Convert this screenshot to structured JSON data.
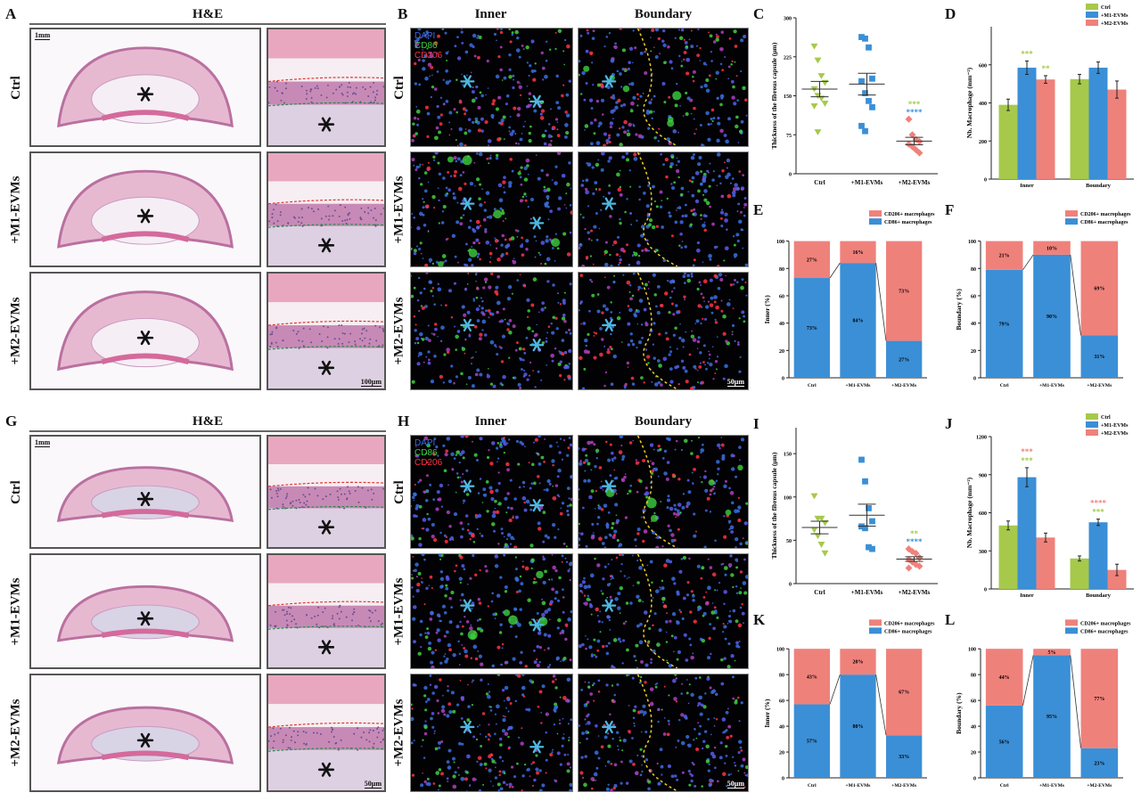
{
  "panels": {
    "A": {
      "letter": "A",
      "title": "H&E",
      "scale_low": "1mm",
      "scale_high": "100μm"
    },
    "B": {
      "letter": "B",
      "columns": [
        "Inner",
        "Boundary"
      ],
      "channels": [
        "DAPI",
        "CD86",
        "CD206"
      ],
      "scale": "50μm"
    },
    "G": {
      "letter": "G",
      "title": "H&E",
      "scale_low": "1mm",
      "scale_high": "50μm"
    },
    "H": {
      "letter": "H",
      "columns": [
        "Inner",
        "Boundary"
      ],
      "channels": [
        "DAPI",
        "CD86",
        "CD206"
      ],
      "scale": "50μm"
    }
  },
  "groups": [
    "Ctrl",
    "+M1-EVMs",
    "+M2-EVMs"
  ],
  "colors": {
    "ctrl": "#a6c94b",
    "m1": "#3b8fd6",
    "m2": "#ef817b",
    "dapi": "#3a6fe0",
    "cd86": "#3fcf3f",
    "cd206": "#ff3344",
    "boundary_line": "#f0d020"
  },
  "chart_data": [
    {
      "panel": "C",
      "type": "scatter",
      "ylabel": "Thickness of the fibrous capsule (μm)",
      "ylim": [
        0,
        300
      ],
      "yticks": [
        "0",
        "75",
        "150",
        "225",
        "300"
      ],
      "ytick_values": [
        0,
        75,
        150,
        225,
        300
      ],
      "categories": [
        "Ctrl",
        "+M1-EVMs",
        "+M2-EVMs"
      ],
      "series": [
        {
          "name": "Ctrl",
          "values": [
            245,
            218,
            188,
            175,
            163,
            150,
            145,
            135,
            130,
            80
          ]
        },
        {
          "name": "+M1-EVMs",
          "values": [
            263,
            260,
            243,
            183,
            178,
            155,
            140,
            128,
            92,
            82
          ]
        },
        {
          "name": "+M2-EVMs",
          "values": [
            105,
            75,
            66,
            62,
            57,
            52,
            46,
            40
          ]
        }
      ],
      "annotations": [
        {
          "category": 2,
          "text": "***",
          "color": "#a6c94b"
        },
        {
          "category": 2,
          "text": "****",
          "color": "#3b8fd6"
        }
      ]
    },
    {
      "panel": "D",
      "type": "bar",
      "ylabel": "Nb. Macrophage (mm⁻²)",
      "ylim": [
        0,
        800
      ],
      "yticks": [
        "0",
        "200",
        "400",
        "600"
      ],
      "ytick_values": [
        0,
        200,
        400,
        600
      ],
      "categories": [
        "Inner",
        "Boundary"
      ],
      "legend": "top-right",
      "series": [
        {
          "name": "Ctrl",
          "values": [
            390,
            525
          ],
          "errors": [
            30,
            25
          ]
        },
        {
          "name": "+M1-EVMs",
          "values": [
            585,
            585
          ],
          "errors": [
            35,
            30
          ]
        },
        {
          "name": "+M2-EVMs",
          "values": [
            523,
            470
          ],
          "errors": [
            20,
            45
          ]
        }
      ],
      "annotations": [
        {
          "category": 0,
          "series": 1,
          "texts": [
            {
              "text": "***",
              "color": "#a6c94b"
            }
          ]
        },
        {
          "category": 0,
          "series": 2,
          "texts": [
            {
              "text": "**",
              "color": "#a6c94b"
            }
          ]
        }
      ]
    },
    {
      "panel": "E",
      "type": "stacked-bar",
      "ylabel": "Inner (%)",
      "ylim": [
        0,
        100
      ],
      "yticks": [
        "0",
        "20",
        "40",
        "60",
        "80",
        "100"
      ],
      "ytick_values": [
        0,
        20,
        40,
        60,
        80,
        100
      ],
      "categories": [
        "Ctrl",
        "+M1-EVMs",
        "+M2-EVMs"
      ],
      "legend": "top-right",
      "series": [
        {
          "name": "CD86+ macrophages",
          "values": [
            73,
            84,
            27
          ],
          "labels": [
            "73%",
            "84%",
            "27%"
          ]
        },
        {
          "name": "CD206+ macrophages",
          "values": [
            27,
            16,
            73
          ],
          "labels": [
            "27%",
            "16%",
            "73%"
          ]
        }
      ]
    },
    {
      "panel": "F",
      "type": "stacked-bar",
      "ylabel": "Boundary (%)",
      "ylim": [
        0,
        100
      ],
      "yticks": [
        "0",
        "20",
        "40",
        "60",
        "80",
        "100"
      ],
      "ytick_values": [
        0,
        20,
        40,
        60,
        80,
        100
      ],
      "categories": [
        "Ctrl",
        "+M1-EVMs",
        "+M2-EVMs"
      ],
      "legend": "top-right",
      "series": [
        {
          "name": "CD86+ macrophages",
          "values": [
            79,
            90,
            31
          ],
          "labels": [
            "79%",
            "90%",
            "31%"
          ]
        },
        {
          "name": "CD206+ macrophages",
          "values": [
            21,
            10,
            69
          ],
          "labels": [
            "21%",
            "10%",
            "69%"
          ]
        }
      ]
    },
    {
      "panel": "I",
      "type": "scatter",
      "ylabel": "Thickness of the fibrous capsule (μm)",
      "ylim": [
        0,
        180
      ],
      "yticks": [
        "0",
        "50",
        "100",
        "150"
      ],
      "ytick_values": [
        0,
        50,
        100,
        150
      ],
      "categories": [
        "Ctrl",
        "+M1-EVMs",
        "+M2-EVMs"
      ],
      "series": [
        {
          "name": "Ctrl",
          "values": [
            101,
            75,
            75,
            70,
            62,
            55,
            45,
            35
          ]
        },
        {
          "name": "+M1-EVMs",
          "values": [
            143,
            118,
            87,
            72,
            66,
            64,
            42,
            40
          ]
        },
        {
          "name": "+M2-EVMs",
          "values": [
            40,
            37,
            35,
            30,
            28,
            25,
            22,
            20,
            18
          ]
        }
      ],
      "annotations": [
        {
          "category": 2,
          "text": "**",
          "color": "#a6c94b"
        },
        {
          "category": 2,
          "text": "****",
          "color": "#3b8fd6"
        }
      ]
    },
    {
      "panel": "J",
      "type": "bar",
      "ylabel": "Nb. Macrophage (mm⁻²)",
      "ylim": [
        0,
        1200
      ],
      "yticks": [
        "0",
        "300",
        "600",
        "900",
        "1200"
      ],
      "ytick_values": [
        0,
        300,
        600,
        900,
        1200
      ],
      "categories": [
        "Inner",
        "Boundary"
      ],
      "legend": "top-right",
      "series": [
        {
          "name": "Ctrl",
          "values": [
            500,
            240
          ],
          "errors": [
            35,
            20
          ]
        },
        {
          "name": "+M1-EVMs",
          "values": [
            880,
            525
          ],
          "errors": [
            75,
            25
          ]
        },
        {
          "name": "+M2-EVMs",
          "values": [
            405,
            150
          ],
          "errors": [
            35,
            45
          ]
        }
      ],
      "annotations": [
        {
          "category": 0,
          "series": 1,
          "texts": [
            {
              "text": "***",
              "color": "#a6c94b"
            },
            {
              "text": "***",
              "color": "#ef817b"
            }
          ]
        },
        {
          "category": 1,
          "series": 1,
          "texts": [
            {
              "text": "***",
              "color": "#a6c94b"
            },
            {
              "text": "****",
              "color": "#ef817b"
            }
          ]
        }
      ]
    },
    {
      "panel": "K",
      "type": "stacked-bar",
      "ylabel": "Inner (%)",
      "ylim": [
        0,
        100
      ],
      "yticks": [
        "0",
        "20",
        "40",
        "60",
        "80",
        "100"
      ],
      "ytick_values": [
        0,
        20,
        40,
        60,
        80,
        100
      ],
      "categories": [
        "Ctrl",
        "+M1-EVMs",
        "+M2-EVMs"
      ],
      "legend": "top-right",
      "series": [
        {
          "name": "CD86+ macrophages",
          "values": [
            57,
            80,
            33
          ],
          "labels": [
            "57%",
            "80%",
            "33%"
          ]
        },
        {
          "name": "CD206+ macrophages",
          "values": [
            43,
            20,
            67
          ],
          "labels": [
            "43%",
            "20%",
            "67%"
          ]
        }
      ]
    },
    {
      "panel": "L",
      "type": "stacked-bar",
      "ylabel": "Boundary (%)",
      "ylim": [
        0,
        100
      ],
      "yticks": [
        "0",
        "20",
        "40",
        "60",
        "80",
        "100"
      ],
      "ytick_values": [
        0,
        20,
        40,
        60,
        80,
        100
      ],
      "categories": [
        "Ctrl",
        "+M1-EVMs",
        "+M2-EVMs"
      ],
      "legend": "top-right",
      "series": [
        {
          "name": "CD86+ macrophages",
          "values": [
            56,
            95,
            23
          ],
          "labels": [
            "56%",
            "95%",
            "23%"
          ]
        },
        {
          "name": "CD206+ macrophages",
          "values": [
            44,
            5,
            77
          ],
          "labels": [
            "44%",
            "5%",
            "77%"
          ]
        }
      ]
    }
  ]
}
